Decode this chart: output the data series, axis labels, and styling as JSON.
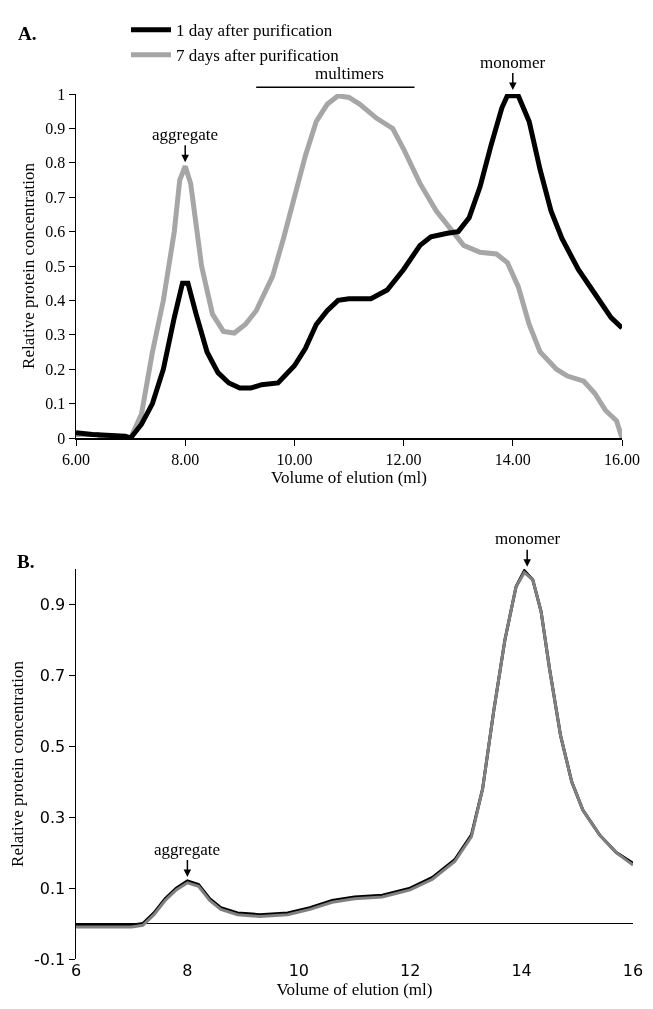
{
  "chart_data": [
    {
      "type": "line",
      "title": "A.",
      "xlabel": "Volume of elution (ml)",
      "ylabel": "Relative protein concentration",
      "legend": "top left",
      "xlim": [
        6,
        16
      ],
      "xticks": [
        {
          "value": 6,
          "label": "6.00"
        },
        {
          "value": 8,
          "label": "8.00"
        },
        {
          "value": 10,
          "label": "10.00"
        },
        {
          "value": 12,
          "label": "12.00"
        },
        {
          "value": 14,
          "label": "14.00"
        },
        {
          "value": 16,
          "label": "16.00"
        }
      ],
      "ylim": [
        0,
        1
      ],
      "yticks": [
        0,
        0.1,
        0.2,
        0.3,
        0.4,
        0.5,
        0.6,
        0.7,
        0.8,
        0.9,
        1
      ],
      "series": [
        {
          "name": "1 day after purification",
          "color": "#000000",
          "x": [
            6,
            6.3,
            6.9,
            7.0,
            7.2,
            7.4,
            7.6,
            7.8,
            7.95,
            8.05,
            8.2,
            8.4,
            8.6,
            8.8,
            9.0,
            9.2,
            9.4,
            9.7,
            10.0,
            10.2,
            10.4,
            10.6,
            10.8,
            11.0,
            11.4,
            11.7,
            12.0,
            12.3,
            12.5,
            12.8,
            13.0,
            13.2,
            13.4,
            13.6,
            13.8,
            13.9,
            14.1,
            14.3,
            14.5,
            14.7,
            14.9,
            15.2,
            15.5,
            15.8,
            16.0
          ],
          "values": [
            0.015,
            0.01,
            0.005,
            0.0,
            0.04,
            0.1,
            0.2,
            0.35,
            0.45,
            0.45,
            0.36,
            0.25,
            0.19,
            0.16,
            0.145,
            0.145,
            0.155,
            0.16,
            0.21,
            0.26,
            0.33,
            0.37,
            0.4,
            0.405,
            0.405,
            0.43,
            0.49,
            0.56,
            0.585,
            0.595,
            0.6,
            0.64,
            0.73,
            0.85,
            0.96,
            0.995,
            0.995,
            0.92,
            0.78,
            0.66,
            0.58,
            0.49,
            0.42,
            0.35,
            0.32
          ]
        },
        {
          "name": "7 days after purification",
          "color": "#a6a6a6",
          "x": [
            6,
            6.4,
            6.5,
            7.0,
            7.2,
            7.4,
            7.6,
            7.8,
            7.9,
            8.0,
            8.1,
            8.3,
            8.5,
            8.7,
            8.9,
            9.1,
            9.3,
            9.6,
            9.8,
            10.0,
            10.2,
            10.4,
            10.6,
            10.8,
            11.0,
            11.2,
            11.5,
            11.8,
            12.0,
            12.3,
            12.6,
            12.9,
            13.1,
            13.4,
            13.7,
            13.9,
            14.1,
            14.3,
            14.5,
            14.8,
            15.0,
            15.3,
            15.5,
            15.7,
            15.9,
            16.0
          ],
          "values": [
            0.01,
            0.01,
            0.0,
            0.0,
            0.07,
            0.25,
            0.4,
            0.6,
            0.75,
            0.79,
            0.74,
            0.5,
            0.36,
            0.31,
            0.305,
            0.33,
            0.37,
            0.47,
            0.58,
            0.7,
            0.82,
            0.92,
            0.97,
            0.995,
            0.99,
            0.97,
            0.93,
            0.9,
            0.84,
            0.74,
            0.66,
            0.6,
            0.56,
            0.54,
            0.535,
            0.51,
            0.44,
            0.33,
            0.25,
            0.2,
            0.18,
            0.165,
            0.13,
            0.08,
            0.05,
            0.0
          ]
        }
      ],
      "annotations": [
        {
          "text": "aggregate",
          "x": 8,
          "y": 0.79
        },
        {
          "text": "monomer",
          "x": 14,
          "y": 1.0
        },
        "multimers"
      ]
    },
    {
      "type": "line",
      "title": "B.",
      "xlabel": "Volume of elution (ml)",
      "ylabel": "Relative protein concentration",
      "xlim": [
        6,
        16
      ],
      "xticks": [
        6,
        8,
        10,
        12,
        14,
        16
      ],
      "ylim": [
        -0.1,
        1.0
      ],
      "yticks": [
        -0.1,
        0.1,
        0.3,
        0.5,
        0.7,
        0.9
      ],
      "series": [
        {
          "color": "#808080",
          "x": [
            6,
            7.0,
            7.2,
            7.4,
            7.6,
            7.8,
            8.0,
            8.2,
            8.4,
            8.6,
            8.9,
            9.3,
            9.8,
            10.2,
            10.6,
            11.0,
            11.5,
            12.0,
            12.4,
            12.8,
            13.1,
            13.3,
            13.5,
            13.7,
            13.9,
            14.05,
            14.2,
            14.35,
            14.5,
            14.7,
            14.9,
            15.1,
            15.4,
            15.7,
            16.0
          ],
          "values": [
            -0.01,
            -0.01,
            -0.005,
            0.025,
            0.065,
            0.095,
            0.115,
            0.105,
            0.065,
            0.04,
            0.025,
            0.02,
            0.025,
            0.04,
            0.06,
            0.07,
            0.075,
            0.095,
            0.125,
            0.175,
            0.245,
            0.38,
            0.6,
            0.8,
            0.95,
            0.99,
            0.97,
            0.88,
            0.72,
            0.53,
            0.4,
            0.32,
            0.25,
            0.2,
            0.165
          ]
        },
        {
          "color": "#000000",
          "x": [
            6,
            7.0,
            7.2,
            7.4,
            7.6,
            7.8,
            8.0,
            8.2,
            8.4,
            8.6,
            8.9,
            9.3,
            9.8,
            10.2,
            10.6,
            11.0,
            11.5,
            12.0,
            12.4,
            12.8,
            13.1,
            13.3,
            13.5,
            13.7,
            13.9,
            14.05,
            14.2,
            14.35,
            14.5,
            14.7,
            14.9,
            15.1,
            15.4,
            15.7,
            16.0
          ],
          "values": [
            -0.005,
            -0.005,
            0.0,
            0.03,
            0.07,
            0.1,
            0.12,
            0.11,
            0.07,
            0.045,
            0.03,
            0.025,
            0.03,
            0.045,
            0.065,
            0.075,
            0.08,
            0.1,
            0.13,
            0.18,
            0.25,
            0.38,
            0.6,
            0.8,
            0.95,
            0.995,
            0.97,
            0.88,
            0.72,
            0.53,
            0.4,
            0.32,
            0.25,
            0.2,
            0.17
          ]
        }
      ],
      "annotations": [
        {
          "text": "aggregate",
          "x": 8,
          "y": 0.12
        },
        {
          "text": "monomer",
          "x": 14.1,
          "y": 0.995
        }
      ]
    }
  ]
}
